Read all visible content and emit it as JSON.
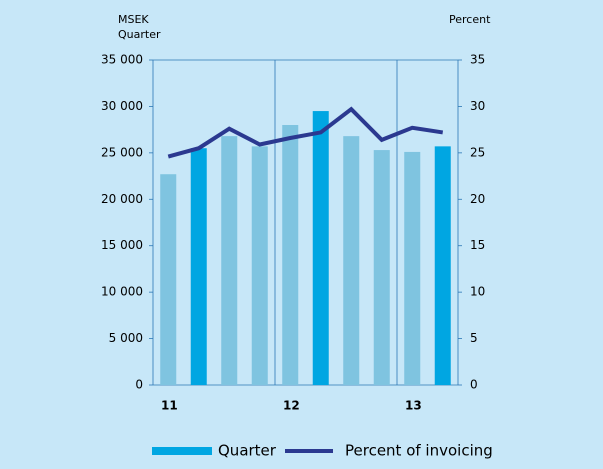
{
  "chart_data": {
    "type": "bar_line",
    "y_label_lines": [
      "MSEK",
      "Quarter"
    ],
    "y2_label": "Percent",
    "categories": [
      "11",
      null,
      null,
      null,
      "12",
      null,
      null,
      null,
      "13",
      null
    ],
    "series": [
      {
        "name": "Quarter",
        "type": "bar",
        "color": "#00a6e2",
        "colors": [
          "#7fc4e0",
          "#00a6e2",
          "#7fc4e0",
          "#7fc4e0",
          "#7fc4e0",
          "#00a6e2",
          "#7fc4e0",
          "#7fc4e0",
          "#7fc4e0",
          "#00a6e2"
        ],
        "values": [
          22700,
          25500,
          26800,
          25700,
          28000,
          29500,
          26800,
          25300,
          25100,
          25700
        ]
      },
      {
        "name": "Percent of invoicing",
        "type": "line",
        "axis": "y2",
        "color": "#2b3990",
        "values": [
          24.6,
          25.5,
          27.6,
          25.9,
          26.6,
          27.2,
          29.7,
          26.4,
          27.7,
          27.2
        ]
      }
    ],
    "ylim": [
      0,
      35000
    ],
    "yticks": [
      0,
      {
        "value": 5000,
        "label": "5 000"
      },
      {
        "value": 10000,
        "label": "10 000"
      },
      {
        "value": 15000,
        "label": "15 000"
      },
      {
        "value": 20000,
        "label": "20 000"
      },
      {
        "value": 25000,
        "label": "25 000"
      },
      {
        "value": 30000,
        "label": "30 000"
      },
      {
        "value": 35000,
        "label": "35 000"
      }
    ],
    "y2lim": [
      0,
      35
    ],
    "y2ticks": [
      0,
      5,
      10,
      15,
      20,
      25,
      30,
      35
    ]
  }
}
